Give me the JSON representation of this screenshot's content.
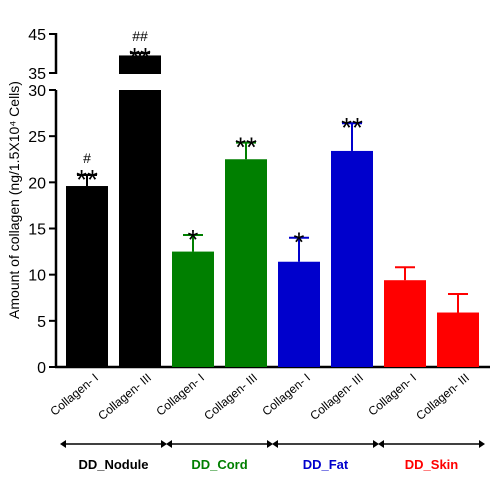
{
  "chart_data": {
    "type": "bar",
    "ylabel": "Amount of collagen (ng/1.5X10⁴ Cells)",
    "y_lower_range": [
      0,
      30
    ],
    "y_upper_range": [
      35,
      45
    ],
    "y_ticks": [
      "0",
      "5",
      "10",
      "15",
      "20",
      "25",
      "30",
      "35",
      "45"
    ],
    "grid": false,
    "bars": [
      {
        "category": "Collagen- I",
        "group": "DD_Nodule",
        "value": 19.6,
        "error": 1.2,
        "color": "#000000",
        "sig": "**",
        "sig2": "#"
      },
      {
        "category": "Collagen- III",
        "group": "DD_Nodule",
        "value": 39.5,
        "error": 0.6,
        "color": "#000000",
        "sig": "**",
        "sig2": "##"
      },
      {
        "category": "Collagen- I",
        "group": "DD_Cord",
        "value": 12.5,
        "error": 1.8,
        "color": "#007f00",
        "sig": "*",
        "sig2": ""
      },
      {
        "category": "Collagen- III",
        "group": "DD_Cord",
        "value": 22.5,
        "error": 1.8,
        "color": "#007f00",
        "sig": "**",
        "sig2": ""
      },
      {
        "category": "Collagen- I",
        "group": "DD_Fat",
        "value": 11.4,
        "error": 2.6,
        "color": "#0000cc",
        "sig": "*",
        "sig2": ""
      },
      {
        "category": "Collagen- III",
        "group": "DD_Fat",
        "value": 23.4,
        "error": 3.0,
        "color": "#0000cc",
        "sig": "**",
        "sig2": ""
      },
      {
        "category": "Collagen- I",
        "group": "DD_Skin",
        "value": 9.4,
        "error": 1.4,
        "color": "#ff0000",
        "sig": "",
        "sig2": ""
      },
      {
        "category": "Collagen- III",
        "group": "DD_Skin",
        "value": 5.9,
        "error": 2.0,
        "color": "#ff0000",
        "sig": "",
        "sig2": ""
      }
    ],
    "groups": [
      {
        "name": "DD_Nodule",
        "color": "#000000"
      },
      {
        "name": "DD_Cord",
        "color": "#007f00"
      },
      {
        "name": "DD_Fat",
        "color": "#0000cc"
      },
      {
        "name": "DD_Skin",
        "color": "#ff0000"
      }
    ]
  }
}
